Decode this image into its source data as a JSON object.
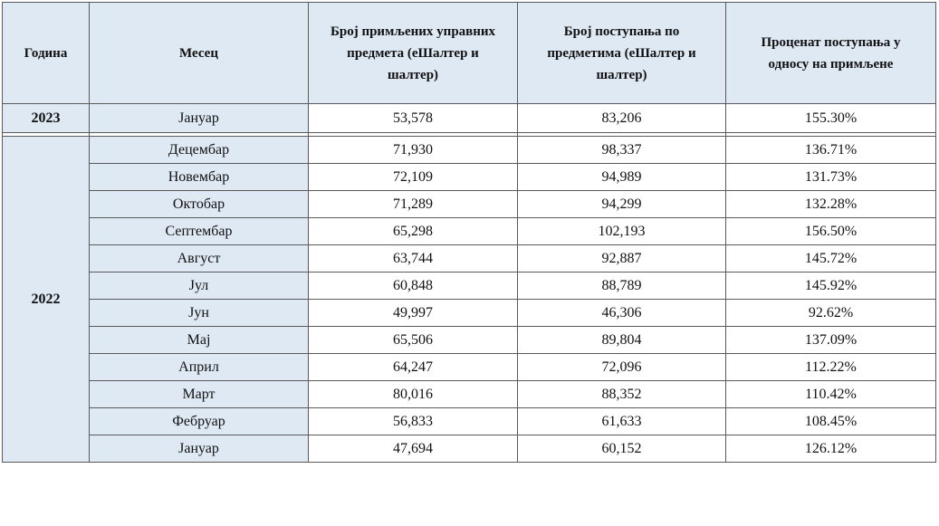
{
  "headers": {
    "year": "Година",
    "month": "Месец",
    "received": "Број примљених управних предмета (еШалтер и шалтер)",
    "actions": "Број поступања по предметима (еШалтер и шалтер)",
    "percent": "Проценат поступања у односу на примљене"
  },
  "year_2023": {
    "label": "2023",
    "rows": [
      {
        "month": "Јануар",
        "received": "53,578",
        "actions": "83,206",
        "percent": "155.30%"
      }
    ]
  },
  "year_2022": {
    "label": "2022",
    "rows": [
      {
        "month": "Децембар",
        "received": "71,930",
        "actions": "98,337",
        "percent": "136.71%"
      },
      {
        "month": "Новембар",
        "received": "72,109",
        "actions": "94,989",
        "percent": "131.73%"
      },
      {
        "month": "Октобар",
        "received": "71,289",
        "actions": "94,299",
        "percent": "132.28%"
      },
      {
        "month": "Септембар",
        "received": "65,298",
        "actions": "102,193",
        "percent": "156.50%"
      },
      {
        "month": "Август",
        "received": "63,744",
        "actions": "92,887",
        "percent": "145.72%"
      },
      {
        "month": "Јул",
        "received": "60,848",
        "actions": "88,789",
        "percent": "145.92%"
      },
      {
        "month": "Јун",
        "received": "49,997",
        "actions": "46,306",
        "percent": "92.62%"
      },
      {
        "month": "Мај",
        "received": "65,506",
        "actions": "89,804",
        "percent": "137.09%"
      },
      {
        "month": "Април",
        "received": "64,247",
        "actions": "72,096",
        "percent": "112.22%"
      },
      {
        "month": "Март",
        "received": "80,016",
        "actions": "88,352",
        "percent": "110.42%"
      },
      {
        "month": "Фебруар",
        "received": "56,833",
        "actions": "61,633",
        "percent": "108.45%"
      },
      {
        "month": "Јануар",
        "received": "47,694",
        "actions": "60,152",
        "percent": "126.12%"
      }
    ]
  }
}
